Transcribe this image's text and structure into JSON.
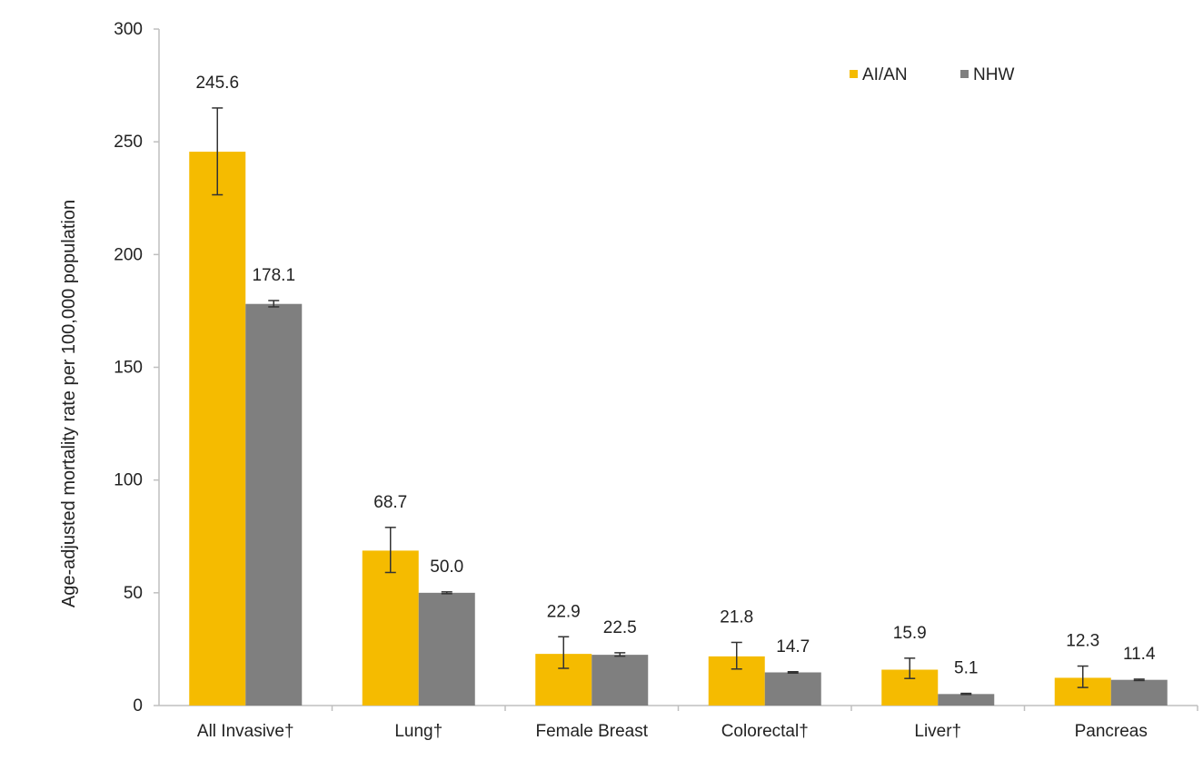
{
  "chart_data": {
    "type": "bar",
    "title": "",
    "xlabel": "",
    "ylabel": "Age-adjusted mortality rate per 100,000 population",
    "ylim": [
      0,
      300
    ],
    "yticks": [
      0,
      50,
      100,
      150,
      200,
      250,
      300
    ],
    "grid": false,
    "legend_position": "top-right",
    "categories": [
      "All Invasive†",
      "Lung†",
      "Female Breast",
      "Colorectal†",
      "Liver†",
      "Pancreas"
    ],
    "series": [
      {
        "name": "AI/AN",
        "color": "#F5BB00",
        "values": [
          245.6,
          68.7,
          22.9,
          21.8,
          15.9,
          12.3
        ],
        "value_labels": [
          "245.6",
          "68.7",
          "22.9",
          "21.8",
          "15.9",
          "12.3"
        ],
        "error_low": [
          226.5,
          59.0,
          16.5,
          16.2,
          12.0,
          8.0
        ],
        "error_high": [
          265.0,
          79.0,
          30.5,
          28.0,
          21.0,
          17.5
        ]
      },
      {
        "name": "NHW",
        "color": "#7F7F7F",
        "values": [
          178.1,
          50.0,
          22.5,
          14.7,
          5.1,
          11.4
        ],
        "value_labels": [
          "178.1",
          "50.0",
          "22.5",
          "14.7",
          "5.1",
          "11.4"
        ],
        "error_low": [
          176.8,
          49.6,
          21.9,
          14.4,
          4.9,
          11.1
        ],
        "error_high": [
          179.6,
          50.4,
          23.4,
          15.0,
          5.4,
          11.7
        ]
      }
    ]
  }
}
